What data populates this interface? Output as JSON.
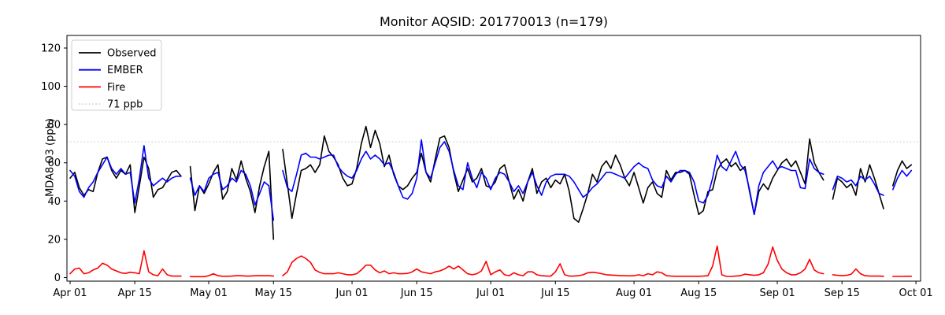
{
  "title": "Monitor AQSID: 201770013 (n=179)",
  "ylabel": "MDA8 O3 (ppb)",
  "chart_data": {
    "type": "line",
    "title": "Monitor AQSID: 201770013 (n=179)",
    "xlabel": "",
    "ylabel": "MDA8 O3 (ppb)",
    "n_points": 179,
    "x_start": "Apr 01",
    "x_end": "Oct 01",
    "x_tick_days": [
      0,
      14,
      30,
      44,
      61,
      75,
      91,
      105,
      122,
      136,
      153,
      167,
      183
    ],
    "x_tick_labels": [
      "Apr 01",
      "Apr 15",
      "May 01",
      "May 15",
      "Jun 01",
      "Jun 15",
      "Jul 01",
      "Jul 15",
      "Aug 01",
      "Aug 15",
      "Sep 01",
      "Sep 15",
      "Oct 01"
    ],
    "y_ticks": [
      0,
      20,
      40,
      60,
      80,
      100,
      120
    ],
    "ylim": [
      -2.3,
      126.6
    ],
    "grid": false,
    "legend_position": "upper left",
    "threshold": {
      "label": "71 ppb",
      "value": 71,
      "color": "#d3d3d3",
      "style": "dotted"
    },
    "series": [
      {
        "name": "Observed",
        "color": "#000000",
        "values": [
          52,
          55,
          47,
          43,
          46,
          45,
          55,
          62,
          63,
          56,
          52,
          56,
          54,
          59,
          34,
          48,
          63,
          57,
          42,
          46,
          47,
          51,
          55,
          56,
          53,
          null,
          58,
          35,
          48,
          44,
          49,
          55,
          59,
          41,
          45,
          57,
          51,
          61,
          52,
          45,
          34,
          48,
          58,
          66,
          20,
          null,
          67,
          49,
          31,
          44,
          56,
          57,
          59,
          55,
          59,
          74,
          66,
          63,
          59,
          52,
          48,
          49,
          57,
          70,
          79,
          68,
          77,
          70,
          58,
          64,
          54,
          48,
          46,
          48,
          52,
          55,
          65,
          55,
          50,
          62,
          73,
          74,
          68,
          55,
          45,
          51,
          57,
          50,
          52,
          57,
          48,
          47,
          50,
          57,
          59,
          50,
          41,
          46,
          40,
          50,
          57,
          44,
          50,
          52,
          47,
          51,
          49,
          54,
          45,
          31,
          29,
          36,
          44,
          54,
          50,
          58,
          61,
          57,
          64,
          59,
          52,
          48,
          55,
          47,
          39,
          47,
          50,
          44,
          42,
          56,
          51,
          55,
          55,
          56,
          54,
          43,
          33,
          35,
          45,
          46,
          56,
          60,
          62,
          58,
          60,
          56,
          58,
          45,
          33,
          45,
          49,
          46,
          52,
          56,
          60,
          62,
          58,
          61,
          55,
          49,
          72.5,
          60,
          55,
          51,
          null,
          41,
          52,
          50,
          47,
          49,
          43,
          57,
          50,
          59,
          52,
          44,
          36,
          null,
          48,
          56,
          61,
          57,
          59
        ]
      },
      {
        "name": "EMBER",
        "color": "#0000ff",
        "values": [
          56,
          53,
          45,
          42,
          47,
          50,
          55,
          59,
          63,
          57,
          54,
          57,
          54,
          55,
          39,
          52,
          69,
          52,
          48,
          50,
          52,
          50,
          52,
          53,
          53,
          null,
          52,
          43,
          48,
          45,
          52,
          54,
          55,
          46,
          48,
          52,
          50,
          56,
          54,
          48,
          38,
          44,
          50,
          48,
          30,
          null,
          56,
          47,
          45,
          54,
          64,
          65,
          63,
          63,
          62,
          63,
          64,
          64,
          58,
          55,
          53,
          52,
          56,
          62,
          66,
          62,
          64,
          62,
          59,
          60,
          55,
          48,
          42,
          41,
          44,
          52,
          72,
          55,
          52,
          60,
          68,
          71,
          66,
          56,
          48,
          46,
          60,
          52,
          47,
          55,
          52,
          46,
          52,
          55,
          54,
          50,
          45,
          48,
          44,
          50,
          55,
          48,
          43,
          50,
          53,
          54,
          54,
          54,
          53,
          50,
          46,
          42,
          44,
          47,
          49,
          52,
          55,
          55,
          54,
          53,
          52,
          55,
          58,
          60,
          58,
          57,
          51,
          48,
          47,
          53,
          50,
          54,
          56,
          56,
          55,
          50,
          40,
          39,
          43,
          52,
          64,
          58,
          56,
          61,
          66,
          59,
          56,
          46,
          33,
          48,
          55,
          58,
          61,
          57,
          58,
          57,
          56,
          56,
          47,
          46.5,
          62,
          57,
          55,
          54,
          null,
          46,
          53,
          52,
          50,
          51,
          48,
          53,
          51,
          53,
          49,
          44,
          43,
          null,
          46,
          52,
          56,
          53,
          56
        ]
      },
      {
        "name": "Fire",
        "color": "#ff0000",
        "values": [
          2,
          4.5,
          5,
          2,
          2.5,
          4,
          5,
          7.5,
          6.5,
          4.5,
          3.5,
          2.5,
          2.2,
          2.8,
          2.5,
          2,
          14,
          3,
          1.5,
          1,
          4.5,
          1.5,
          0.8,
          0.8,
          0.8,
          null,
          0.5,
          0.5,
          0.5,
          0.5,
          1,
          2,
          1,
          0.7,
          0.7,
          0.8,
          1,
          1,
          0.8,
          0.8,
          1,
          1,
          1,
          1,
          0.8,
          null,
          1,
          3,
          8,
          10,
          11.3,
          10,
          8,
          4,
          2.7,
          2,
          2,
          2,
          2.5,
          2,
          1.5,
          1.5,
          2,
          4,
          6.5,
          6.5,
          4,
          2.5,
          3.5,
          2,
          2.5,
          2,
          2,
          2.2,
          3,
          4.5,
          3,
          2.5,
          2,
          3,
          3.5,
          4.5,
          6,
          4.5,
          6,
          4,
          2,
          1.5,
          2,
          3.5,
          8.5,
          1.5,
          3,
          4,
          1.5,
          1,
          2.5,
          1.5,
          1,
          3,
          3,
          1.5,
          1,
          0.8,
          0.8,
          3,
          7.2,
          1.5,
          0.8,
          0.8,
          1,
          1.5,
          2.5,
          2.8,
          2.5,
          2,
          1.5,
          1.3,
          1.2,
          1,
          1,
          0.9,
          1,
          1.5,
          1,
          2,
          1.5,
          3,
          2.5,
          1,
          0.8,
          0.7,
          0.7,
          0.7,
          0.7,
          0.7,
          0.7,
          0.8,
          1,
          6,
          16.5,
          1.5,
          0.6,
          0.6,
          0.8,
          1,
          1.8,
          1.5,
          1.2,
          1.5,
          2.5,
          7,
          16,
          9,
          4.5,
          2.5,
          1.5,
          1.5,
          2.5,
          4.5,
          9.5,
          4,
          2.5,
          2,
          null,
          1.5,
          1.2,
          1,
          1.2,
          1.8,
          4.5,
          2,
          1,
          0.8,
          0.8,
          0.8,
          0.7,
          null,
          0.6,
          0.6,
          0.6,
          0.7,
          0.7
        ]
      }
    ],
    "legend": [
      "Observed",
      "EMBER",
      "Fire",
      "71 ppb"
    ]
  }
}
